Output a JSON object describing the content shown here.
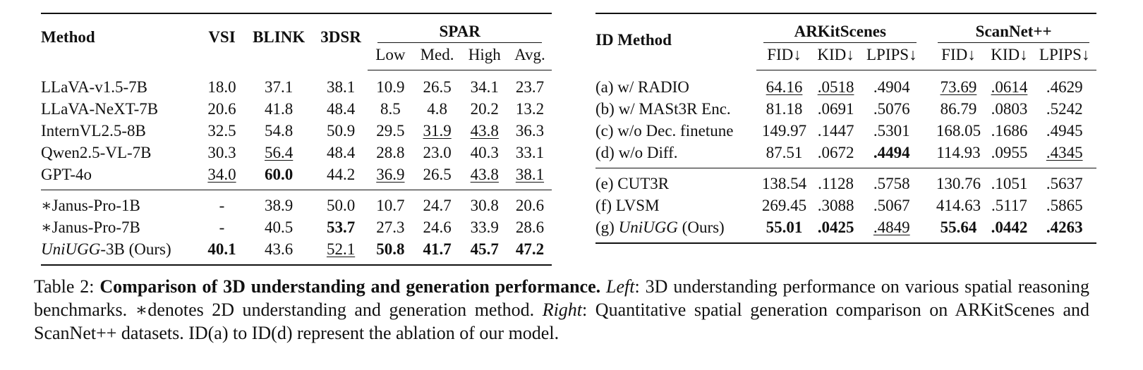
{
  "left_table": {
    "header": {
      "method": "Method",
      "vsi": "VSI",
      "blink": "BLINK",
      "dsr": "3DSR",
      "spar": "SPAR",
      "low": "Low",
      "med": "Med.",
      "high": "High",
      "avg": "Avg."
    },
    "rows": [
      {
        "m": "LLaVA-v1.5-7B",
        "vsi": "18.0",
        "blink": "37.1",
        "dsr": "38.1",
        "low": "10.9",
        "med": "26.5",
        "high": "34.1",
        "avg": "23.7"
      },
      {
        "m": "LLaVA-NeXT-7B",
        "vsi": "20.6",
        "blink": "41.8",
        "dsr": "48.4",
        "low": "8.5",
        "med": "4.8",
        "high": "20.2",
        "avg": "13.2"
      },
      {
        "m": "InternVL2.5-8B",
        "vsi": "32.5",
        "blink": "54.8",
        "dsr": "50.9",
        "low": "29.5",
        "med": "31.9",
        "high": "43.8",
        "avg": "36.3"
      },
      {
        "m": "Qwen2.5-VL-7B",
        "vsi": "30.3",
        "blink": "56.4",
        "dsr": "48.4",
        "low": "28.8",
        "med": "23.0",
        "high": "40.3",
        "avg": "33.1"
      },
      {
        "m": "GPT-4o",
        "vsi": "34.0",
        "blink": "60.0",
        "dsr": "44.2",
        "low": "36.9",
        "med": "26.5",
        "high": "43.8",
        "avg": "38.1"
      },
      {
        "m": "∗Janus-Pro-1B",
        "vsi": "-",
        "blink": "38.9",
        "dsr": "50.0",
        "low": "10.7",
        "med": "24.7",
        "high": "30.8",
        "avg": "20.6"
      },
      {
        "m": "∗Janus-Pro-7B",
        "vsi": "-",
        "blink": "40.5",
        "dsr": "53.7",
        "low": "27.3",
        "med": "24.6",
        "high": "33.9",
        "avg": "28.6"
      },
      {
        "m_italic": "UniUGG",
        "m_rest": "-3B (Ours)",
        "vsi": "40.1",
        "blink": "43.6",
        "dsr": "52.1",
        "low": "50.8",
        "med": "41.7",
        "high": "45.7",
        "avg": "47.2"
      }
    ]
  },
  "right_table": {
    "header": {
      "id_method": "ID Method",
      "ark": "ARKitScenes",
      "scan": "ScanNet++",
      "fid": "FID↓",
      "kid": "KID↓",
      "lpips": "LPIPS↓"
    },
    "rows": [
      {
        "id": "(a)",
        "m": "w/ RADIO",
        "afid": "64.16",
        "akid": ".0518",
        "alp": ".4904",
        "sfid": "73.69",
        "skid": ".0614",
        "slp": ".4629"
      },
      {
        "id": "(b)",
        "m": "w/ MASt3R Enc.",
        "afid": "81.18",
        "akid": ".0691",
        "alp": ".5076",
        "sfid": "86.79",
        "skid": ".0803",
        "slp": ".5242"
      },
      {
        "id": "(c)",
        "m": "w/o Dec. finetune",
        "afid": "149.97",
        "akid": ".1447",
        "alp": ".5301",
        "sfid": "168.05",
        "skid": ".1686",
        "slp": ".4945"
      },
      {
        "id": "(d)",
        "m": "w/o Diff.",
        "afid": "87.51",
        "akid": ".0672",
        "alp": ".4494",
        "sfid": "114.93",
        "skid": ".0955",
        "slp": ".4345"
      },
      {
        "id": "(e)",
        "m": "CUT3R",
        "afid": "138.54",
        "akid": ".1128",
        "alp": ".5758",
        "sfid": "130.76",
        "skid": ".1051",
        "slp": ".5637"
      },
      {
        "id": "(f)",
        "m": "LVSM",
        "afid": "269.45",
        "akid": ".3088",
        "alp": ".5067",
        "sfid": "414.63",
        "skid": ".5117",
        "slp": ".5865"
      },
      {
        "id": "(g)",
        "m_italic": "UniUGG",
        "m_rest": " (Ours)",
        "afid": "55.01",
        "akid": ".0425",
        "alp": ".4849",
        "sfid": "55.64",
        "skid": ".0442",
        "slp": ".4263"
      }
    ]
  },
  "caption": {
    "label": "Table 2: ",
    "bold": "Comparison of 3D understanding and generation performance.",
    "left_word": "Left",
    "left_text": ": 3D understanding performance on various spatial reasoning benchmarks. ∗denotes 2D understanding and generation method. ",
    "right_word": "Right",
    "right_text": ": Quantitative spatial generation comparison on ARKitScenes and ScanNet++ datasets. ID(a) to ID(d) represent the ablation of our model."
  }
}
